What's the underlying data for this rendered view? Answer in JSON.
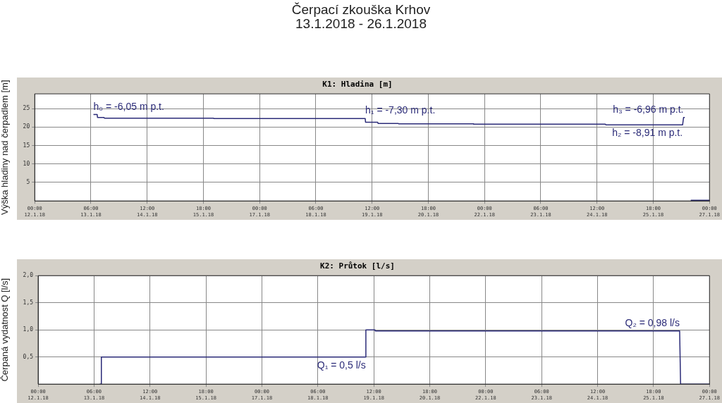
{
  "chart_data": [
    {
      "type": "other",
      "title": "Čerpací zkouška Krhov",
      "subtitle": "13.1.2018 - 26.1.2018"
    },
    {
      "type": "line",
      "title": "K1: Hladina [m]",
      "ylabel": "Výška hladiny nad čerpadlem [m]",
      "xlim": [
        "2018-01-12T00:00",
        "2018-01-27T00:00"
      ],
      "xticks": [
        {
          "value": "2018-01-12T00:00",
          "label": "00:00 12.1.18"
        },
        {
          "value": "2018-01-13T06:00",
          "label": "06:00 13.1.18"
        },
        {
          "value": "2018-01-14T12:00",
          "label": "12:00 14.1.18"
        },
        {
          "value": "2018-01-15T18:00",
          "label": "18:00 15.1.18"
        },
        {
          "value": "2018-01-17T00:00",
          "label": "00:00 17.1.18"
        },
        {
          "value": "2018-01-18T06:00",
          "label": "06:00 18.1.18"
        },
        {
          "value": "2018-01-19T12:00",
          "label": "12:00 19.1.18"
        },
        {
          "value": "2018-01-20T18:00",
          "label": "18:00 20.1.18"
        },
        {
          "value": "2018-01-22T00:00",
          "label": "00:00 22.1.18"
        },
        {
          "value": "2018-01-23T06:00",
          "label": "06:00 23.1.18"
        },
        {
          "value": "2018-01-24T12:00",
          "label": "12:00 24.1.18"
        },
        {
          "value": "2018-01-25T18:00",
          "label": "18:00 25.1.18"
        },
        {
          "value": "2018-01-27T00:00",
          "label": "00:00 27.1.18"
        }
      ],
      "ylim": [
        0,
        29
      ],
      "yticks": [
        5,
        10,
        15,
        20,
        25
      ],
      "grid": true,
      "legend": false,
      "marker": "none",
      "line_style": "solid",
      "series": [
        {
          "color": "#2b2b78",
          "x": [
            "2018-01-13T07:20",
            "2018-01-13T09:20",
            "2018-01-13T09:30",
            "2018-01-13T13:00",
            "2018-01-13T13:10",
            "2018-01-15T23:25",
            "2018-01-15T23:35",
            "2018-01-19T08:20",
            "2018-01-19T08:30",
            "2018-01-19T15:00",
            "2018-01-19T15:10",
            "2018-01-20T02:00",
            "2018-01-20T02:10",
            "2018-01-21T18:00",
            "2018-01-21T18:10",
            "2018-01-24T16:30",
            "2018-01-24T16:40",
            "2018-01-26T09:40",
            "2018-01-26T10:10",
            "2018-01-26T10:50",
            "2018-01-26T11:00",
            "2018-01-26T14:00",
            "2018-01-27T00:00"
          ],
          "values": [
            23.4,
            23.4,
            22.6,
            22.6,
            22.4,
            22.4,
            22.3,
            22.3,
            21.3,
            21.3,
            21.0,
            21.0,
            20.9,
            20.9,
            20.8,
            20.8,
            20.6,
            20.6,
            22.6,
            22.6,
            null,
            0.2,
            0.2
          ]
        }
      ],
      "annotations": [
        {
          "text": "h₀ = -6,05 m p.t.",
          "x": "2018-01-13T07:20",
          "y": 23.4
        },
        {
          "text": "h₁ = -7,30 m p.t.",
          "x": "2018-01-19T08:20",
          "y": 22.3
        },
        {
          "text": "h₃ = -6,96 m p.t.",
          "x": "2018-01-26T10:10",
          "y": 22.6
        },
        {
          "text": "h₂ = -8,91 m p.t.",
          "x": "2018-01-26T09:40",
          "y": 20.6
        }
      ]
    },
    {
      "type": "line",
      "title": "K2: Průtok [l/s]",
      "ylabel": "Čerpaná vydatnost Q [l/s]",
      "xlim": [
        "2018-01-12T00:00",
        "2018-01-27T00:00"
      ],
      "xticks": [
        {
          "value": "2018-01-12T00:00",
          "label": "00:00 12.1.18"
        },
        {
          "value": "2018-01-13T06:00",
          "label": "06:00 13.1.18"
        },
        {
          "value": "2018-01-14T12:00",
          "label": "12:00 14.1.18"
        },
        {
          "value": "2018-01-15T18:00",
          "label": "18:00 15.1.18"
        },
        {
          "value": "2018-01-17T00:00",
          "label": "00:00 17.1.18"
        },
        {
          "value": "2018-01-18T06:00",
          "label": "06:00 18.1.18"
        },
        {
          "value": "2018-01-19T12:00",
          "label": "12:00 19.1.18"
        },
        {
          "value": "2018-01-20T18:00",
          "label": "18:00 20.1.18"
        },
        {
          "value": "2018-01-22T00:00",
          "label": "00:00 22.1.18"
        },
        {
          "value": "2018-01-23T06:00",
          "label": "06:00 23.1.18"
        },
        {
          "value": "2018-01-24T12:00",
          "label": "12:00 24.1.18"
        },
        {
          "value": "2018-01-25T18:00",
          "label": "18:00 25.1.18"
        },
        {
          "value": "2018-01-27T00:00",
          "label": "00:00 27.1.18"
        }
      ],
      "ylim": [
        0,
        2
      ],
      "yticks": [
        {
          "value": 0.5,
          "label": "0,5"
        },
        {
          "value": 1,
          "label": "1,0"
        },
        {
          "value": 1.5,
          "label": "1,5"
        },
        {
          "value": 2,
          "label": "2,0"
        }
      ],
      "grid": true,
      "legend": false,
      "marker": "none",
      "line_style": "solid",
      "series": [
        {
          "color": "#2b2b78",
          "x": [
            "2018-01-13T09:00",
            "2018-01-13T09:50",
            "2018-01-13T09:55",
            "2018-01-19T07:40",
            "2018-01-19T07:45",
            "2018-01-19T12:40",
            "2018-01-19T12:45",
            "2018-01-26T08:00",
            "2018-01-26T08:30",
            "2018-01-27T00:00"
          ],
          "values": [
            0,
            0,
            0.5,
            0.5,
            1.0,
            1.0,
            0.98,
            0.98,
            0,
            0
          ]
        }
      ],
      "annotations": [
        {
          "text": "Q₁ = 0,5 l/s",
          "x": "2018-01-19T07:40",
          "y": 0.5
        },
        {
          "text": "Q₂ = 0,98 l/s",
          "x": "2018-01-26T08:00",
          "y": 0.98
        }
      ]
    }
  ]
}
